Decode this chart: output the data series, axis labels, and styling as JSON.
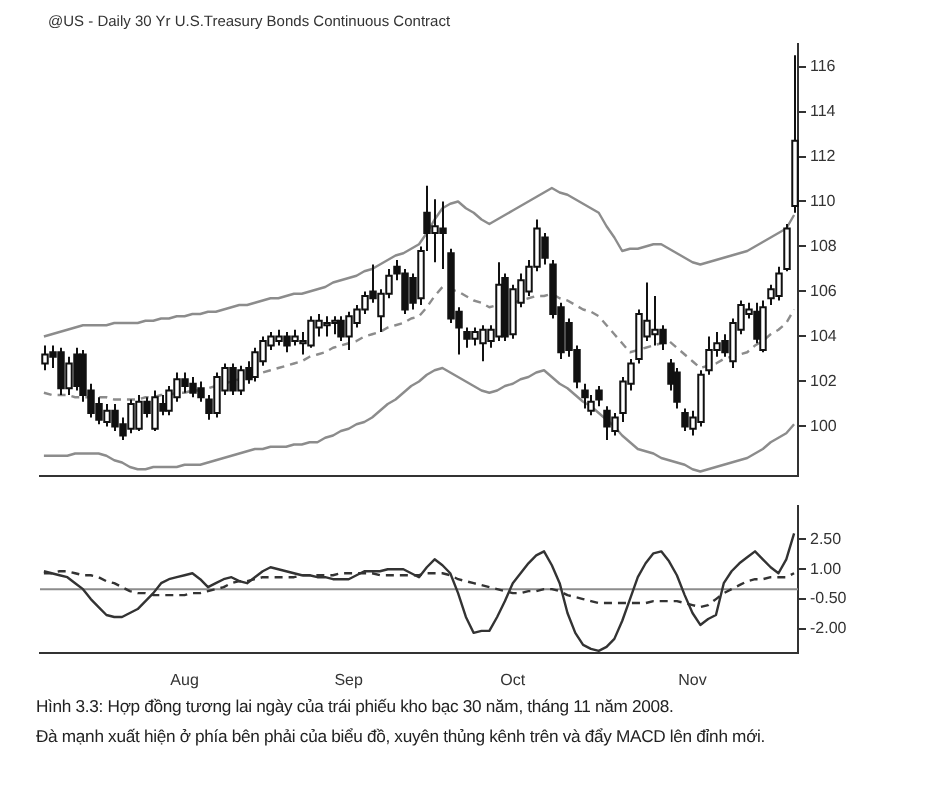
{
  "chart_data": [
    {
      "type": "candlestick",
      "title": "@US - Daily  30 Yr U.S.Treasury Bonds Continuous Contract",
      "tick_labels": "y",
      "categories": [
        null,
        null,
        null,
        null,
        null,
        null,
        null,
        null,
        null,
        null,
        null,
        null,
        null,
        null,
        null,
        null,
        null,
        null,
        null,
        null,
        null,
        null,
        null,
        null,
        null,
        null,
        null,
        null,
        null,
        null,
        null,
        null,
        null,
        null,
        null,
        null,
        null,
        null,
        null,
        null,
        null,
        null,
        null,
        null,
        null,
        null,
        null,
        null,
        null,
        null,
        null,
        null,
        null,
        null,
        null,
        null,
        null,
        null,
        null,
        null,
        null,
        null,
        null,
        null,
        null,
        null,
        null,
        null,
        null,
        null,
        null,
        null,
        null,
        null,
        null,
        null,
        null,
        null,
        null,
        null,
        null,
        null,
        null,
        null,
        null,
        null,
        null,
        null,
        null,
        null,
        null,
        null,
        null,
        null,
        null,
        null,
        null
      ],
      "ohlc": [
        [
          102.8,
          103.6,
          102.5,
          103.2
        ],
        [
          103.3,
          103.6,
          102.6,
          103.1
        ],
        [
          103.3,
          103.5,
          101.4,
          101.7
        ],
        [
          101.7,
          103.1,
          101.4,
          102.8
        ],
        [
          103.2,
          103.5,
          101.6,
          101.8
        ],
        [
          103.2,
          103.4,
          101.1,
          101.4
        ],
        [
          101.6,
          101.9,
          100.4,
          100.6
        ],
        [
          101.0,
          101.3,
          100.1,
          100.3
        ],
        [
          100.2,
          101.0,
          100.0,
          100.7
        ],
        [
          100.7,
          101.0,
          99.8,
          100.0
        ],
        [
          100.1,
          100.4,
          99.4,
          99.6
        ],
        [
          99.9,
          101.2,
          99.7,
          101.0
        ],
        [
          99.9,
          101.4,
          99.8,
          101.1
        ],
        [
          101.1,
          101.3,
          100.4,
          100.6
        ],
        [
          99.9,
          101.6,
          99.8,
          101.3
        ],
        [
          101.0,
          101.4,
          100.5,
          100.7
        ],
        [
          100.7,
          101.8,
          100.5,
          101.6
        ],
        [
          101.3,
          102.4,
          101.1,
          102.1
        ],
        [
          102.1,
          102.4,
          101.5,
          101.8
        ],
        [
          101.9,
          102.2,
          101.3,
          101.5
        ],
        [
          101.7,
          102.0,
          101.1,
          101.3
        ],
        [
          101.2,
          101.4,
          100.3,
          100.6
        ],
        [
          100.6,
          102.4,
          100.4,
          102.2
        ],
        [
          101.6,
          102.8,
          101.4,
          102.6
        ],
        [
          102.6,
          102.8,
          101.4,
          101.6
        ],
        [
          101.6,
          102.7,
          101.4,
          102.5
        ],
        [
          102.6,
          102.9,
          101.9,
          102.1
        ],
        [
          102.2,
          103.5,
          102.0,
          103.3
        ],
        [
          102.9,
          104.0,
          102.7,
          103.8
        ],
        [
          103.6,
          104.2,
          103.4,
          104.0
        ],
        [
          103.8,
          104.3,
          103.6,
          104.0
        ],
        [
          104.0,
          104.2,
          103.3,
          103.6
        ],
        [
          103.8,
          104.3,
          103.6,
          104.0
        ],
        [
          103.7,
          104.2,
          103.2,
          103.8
        ],
        [
          103.6,
          104.9,
          103.5,
          104.7
        ],
        [
          104.4,
          105.0,
          104.0,
          104.7
        ],
        [
          104.5,
          104.9,
          104.0,
          104.6
        ],
        [
          104.6,
          104.9,
          104.1,
          104.7
        ],
        [
          104.7,
          104.9,
          103.8,
          104.0
        ],
        [
          104.0,
          105.1,
          103.4,
          104.9
        ],
        [
          104.6,
          105.4,
          104.4,
          105.2
        ],
        [
          105.2,
          106.0,
          105.0,
          105.8
        ],
        [
          106.0,
          107.2,
          105.5,
          105.7
        ],
        [
          104.9,
          106.1,
          104.2,
          105.9
        ],
        [
          105.9,
          107.0,
          105.7,
          106.7
        ],
        [
          107.1,
          107.4,
          106.5,
          106.8
        ],
        [
          106.8,
          107.0,
          105.0,
          105.2
        ],
        [
          106.6,
          106.8,
          105.2,
          105.5
        ],
        [
          105.7,
          108.0,
          105.4,
          107.8
        ],
        [
          109.5,
          110.7,
          107.8,
          108.6
        ],
        [
          108.6,
          110.1,
          107.3,
          108.9
        ],
        [
          108.8,
          110.0,
          107.0,
          108.6
        ],
        [
          107.7,
          107.9,
          104.6,
          104.8
        ],
        [
          105.1,
          105.3,
          103.2,
          104.4
        ],
        [
          104.2,
          104.4,
          103.5,
          103.9
        ],
        [
          103.9,
          104.4,
          103.6,
          104.2
        ],
        [
          103.7,
          104.5,
          102.9,
          104.3
        ],
        [
          103.8,
          104.5,
          103.5,
          104.3
        ],
        [
          104.0,
          107.3,
          103.8,
          106.3
        ],
        [
          106.6,
          106.8,
          103.8,
          104.0
        ],
        [
          104.1,
          106.3,
          103.9,
          106.1
        ],
        [
          105.5,
          106.8,
          105.3,
          106.5
        ],
        [
          106.0,
          107.4,
          105.8,
          107.1
        ],
        [
          107.1,
          109.2,
          106.9,
          108.8
        ],
        [
          108.4,
          108.6,
          107.2,
          107.5
        ],
        [
          107.2,
          107.4,
          104.8,
          105.0
        ],
        [
          105.3,
          105.5,
          103.0,
          103.3
        ],
        [
          104.6,
          104.8,
          103.1,
          103.4
        ],
        [
          103.4,
          103.6,
          101.7,
          102.0
        ],
        [
          101.6,
          101.9,
          100.8,
          101.3
        ],
        [
          100.7,
          101.4,
          100.5,
          101.1
        ],
        [
          101.6,
          101.8,
          100.9,
          101.2
        ],
        [
          100.7,
          100.9,
          99.4,
          100.0
        ],
        [
          99.8,
          100.6,
          99.6,
          100.4
        ],
        [
          100.6,
          102.2,
          100.2,
          102.0
        ],
        [
          101.9,
          103.0,
          101.6,
          102.8
        ],
        [
          103.0,
          105.2,
          102.8,
          105.0
        ],
        [
          104.0,
          106.4,
          103.8,
          104.7
        ],
        [
          104.1,
          105.8,
          103.6,
          104.3
        ],
        [
          104.3,
          104.5,
          103.4,
          103.7
        ],
        [
          102.8,
          103.0,
          101.6,
          101.9
        ],
        [
          102.4,
          102.6,
          100.8,
          101.1
        ],
        [
          100.6,
          100.8,
          99.8,
          100.0
        ],
        [
          99.9,
          100.7,
          99.6,
          100.4
        ],
        [
          100.2,
          102.5,
          100.0,
          102.3
        ],
        [
          102.5,
          104.0,
          102.3,
          103.4
        ],
        [
          103.4,
          104.2,
          103.1,
          103.7
        ],
        [
          103.8,
          104.1,
          103.1,
          103.3
        ],
        [
          102.9,
          104.8,
          102.6,
          104.6
        ],
        [
          104.3,
          105.6,
          104.1,
          105.4
        ],
        [
          105.0,
          105.5,
          104.8,
          105.2
        ],
        [
          105.1,
          105.5,
          103.7,
          103.9
        ],
        [
          103.4,
          105.6,
          103.3,
          105.3
        ],
        [
          105.7,
          106.3,
          105.4,
          106.1
        ],
        [
          105.8,
          107.1,
          105.6,
          106.8
        ],
        [
          107.0,
          109.0,
          106.9,
          108.8
        ],
        [
          109.8,
          116.5,
          109.5,
          112.7
        ]
      ],
      "series": [
        {
          "type": "line",
          "color": "#8c8c8c",
          "line_style": "solid",
          "values": [
            104.0,
            104.1,
            104.2,
            104.3,
            104.4,
            104.5,
            104.5,
            104.5,
            104.5,
            104.6,
            104.6,
            104.6,
            104.6,
            104.7,
            104.7,
            104.8,
            104.8,
            104.9,
            104.9,
            105.0,
            105.0,
            105.1,
            105.1,
            105.2,
            105.3,
            105.4,
            105.4,
            105.5,
            105.6,
            105.7,
            105.7,
            105.8,
            105.9,
            105.9,
            106.0,
            106.1,
            106.2,
            106.4,
            106.5,
            106.6,
            106.7,
            106.9,
            107.0,
            107.2,
            107.4,
            107.6,
            107.7,
            107.9,
            108.1,
            108.6,
            109.2,
            109.7,
            109.9,
            110.0,
            109.7,
            109.5,
            109.2,
            109.0,
            109.2,
            109.4,
            109.6,
            109.8,
            110.0,
            110.2,
            110.4,
            110.6,
            110.4,
            110.3,
            110.1,
            109.9,
            109.7,
            109.5,
            108.9,
            108.4,
            107.8,
            107.9,
            107.9,
            108.0,
            108.1,
            108.1,
            107.9,
            107.7,
            107.5,
            107.3,
            107.2,
            107.3,
            107.4,
            107.5,
            107.6,
            107.7,
            107.8,
            108.0,
            108.2,
            108.4,
            108.6,
            108.8,
            109.4
          ]
        },
        {
          "type": "line",
          "color": "#8c8c8c",
          "line_style": "dashed",
          "values": [
            101.5,
            101.4,
            101.4,
            101.4,
            101.3,
            101.3,
            101.3,
            101.3,
            101.3,
            101.2,
            101.2,
            101.2,
            101.2,
            101.3,
            101.3,
            101.4,
            101.4,
            101.5,
            101.5,
            101.6,
            101.6,
            101.7,
            101.8,
            101.9,
            102.0,
            102.1,
            102.2,
            102.3,
            102.4,
            102.5,
            102.6,
            102.7,
            102.8,
            102.9,
            103.1,
            103.2,
            103.3,
            103.5,
            103.6,
            103.7,
            103.8,
            104.0,
            104.1,
            104.2,
            104.4,
            104.5,
            104.6,
            104.8,
            104.9,
            105.3,
            105.8,
            106.2,
            106.1,
            106.0,
            105.8,
            105.6,
            105.5,
            105.3,
            105.4,
            105.4,
            105.5,
            105.6,
            105.7,
            105.8,
            105.8,
            105.9,
            105.7,
            105.6,
            105.4,
            105.2,
            105.1,
            104.9,
            104.5,
            104.1,
            103.7,
            103.3,
            103.4,
            103.5,
            103.6,
            103.7,
            103.8,
            103.5,
            103.2,
            102.9,
            102.6,
            102.7,
            102.8,
            103.0,
            103.1,
            103.2,
            103.3,
            103.6,
            103.8,
            104.1,
            104.3,
            104.6,
            105.2
          ]
        },
        {
          "type": "line",
          "color": "#8c8c8c",
          "line_style": "solid",
          "values": [
            98.7,
            98.7,
            98.7,
            98.7,
            98.8,
            98.8,
            98.8,
            98.8,
            98.7,
            98.5,
            98.4,
            98.2,
            98.1,
            98.1,
            98.2,
            98.2,
            98.2,
            98.2,
            98.3,
            98.3,
            98.3,
            98.4,
            98.5,
            98.6,
            98.7,
            98.8,
            98.9,
            99.0,
            99.0,
            99.1,
            99.1,
            99.1,
            99.2,
            99.2,
            99.3,
            99.3,
            99.5,
            99.6,
            99.8,
            99.9,
            100.1,
            100.2,
            100.4,
            100.7,
            101.0,
            101.2,
            101.5,
            101.8,
            102.0,
            102.3,
            102.5,
            102.6,
            102.4,
            102.2,
            102.0,
            101.8,
            101.6,
            101.5,
            101.6,
            101.8,
            101.9,
            102.1,
            102.2,
            102.4,
            102.5,
            102.2,
            101.9,
            101.7,
            101.4,
            101.1,
            100.9,
            100.6,
            100.3,
            100.0,
            99.6,
            99.3,
            99.0,
            98.9,
            98.8,
            98.6,
            98.5,
            98.4,
            98.3,
            98.1,
            98.0,
            98.1,
            98.2,
            98.3,
            98.4,
            98.5,
            98.6,
            98.8,
            99.0,
            99.3,
            99.5,
            99.7,
            100.1
          ]
        }
      ],
      "ylim": [
        97.8,
        117
      ],
      "yticks": [
        100,
        102,
        104,
        106,
        108,
        110,
        112,
        114,
        116
      ]
    },
    {
      "type": "line",
      "categories": [
        null,
        null,
        null,
        null,
        null,
        null,
        null,
        null,
        null,
        null,
        null,
        null,
        null,
        null,
        null,
        null,
        null,
        null,
        "Aug",
        null,
        null,
        null,
        null,
        null,
        null,
        null,
        null,
        null,
        null,
        null,
        null,
        null,
        null,
        null,
        null,
        null,
        null,
        null,
        null,
        "Sep",
        null,
        null,
        null,
        null,
        null,
        null,
        null,
        null,
        null,
        null,
        null,
        null,
        null,
        null,
        null,
        null,
        null,
        null,
        null,
        null,
        "Oct",
        null,
        null,
        null,
        null,
        null,
        null,
        null,
        null,
        null,
        null,
        null,
        null,
        null,
        null,
        null,
        null,
        null,
        null,
        null,
        null,
        null,
        null,
        "Nov",
        null,
        null,
        null,
        null,
        null,
        null,
        null,
        null,
        null,
        null,
        null,
        null,
        null
      ],
      "series": [
        {
          "color": "#333333",
          "line_style": "solid",
          "values": [
            0.9,
            0.8,
            0.7,
            0.6,
            0.3,
            0.0,
            -0.5,
            -0.9,
            -1.3,
            -1.4,
            -1.4,
            -1.2,
            -1.0,
            -0.6,
            -0.2,
            0.3,
            0.5,
            0.6,
            0.7,
            0.8,
            0.5,
            0.1,
            0.3,
            0.5,
            0.6,
            0.4,
            0.3,
            0.6,
            0.9,
            1.1,
            1.0,
            0.9,
            0.8,
            0.7,
            0.7,
            0.6,
            0.6,
            0.5,
            0.5,
            0.5,
            0.7,
            0.9,
            0.9,
            0.9,
            1.0,
            1.0,
            1.0,
            0.8,
            0.6,
            1.1,
            1.5,
            1.2,
            0.8,
            -0.2,
            -1.4,
            -2.2,
            -2.1,
            -2.1,
            -1.4,
            -0.6,
            0.3,
            0.8,
            1.3,
            1.7,
            1.9,
            1.2,
            0.3,
            -1.2,
            -2.2,
            -2.8,
            -3.0,
            -3.1,
            -2.9,
            -2.5,
            -1.6,
            -0.5,
            0.6,
            1.3,
            1.8,
            1.9,
            1.4,
            0.7,
            -0.3,
            -1.2,
            -1.8,
            -1.5,
            -1.3,
            0.3,
            0.9,
            1.3,
            1.6,
            1.9,
            1.5,
            1.1,
            0.8,
            1.5,
            2.8
          ]
        },
        {
          "color": "#333333",
          "line_style": "dashed",
          "values": [
            0.8,
            0.8,
            0.9,
            0.9,
            0.8,
            0.7,
            0.7,
            0.6,
            0.4,
            0.3,
            0.1,
            -0.1,
            -0.2,
            -0.2,
            -0.3,
            -0.3,
            -0.3,
            -0.3,
            -0.3,
            -0.2,
            -0.2,
            -0.1,
            0.0,
            0.1,
            0.3,
            0.4,
            0.4,
            0.5,
            0.6,
            0.6,
            0.6,
            0.6,
            0.6,
            0.7,
            0.7,
            0.7,
            0.7,
            0.7,
            0.8,
            0.8,
            0.8,
            0.8,
            0.8,
            0.7,
            0.7,
            0.7,
            0.7,
            0.7,
            0.7,
            0.8,
            0.8,
            0.8,
            0.7,
            0.5,
            0.4,
            0.3,
            0.2,
            0.1,
            0.0,
            -0.1,
            -0.2,
            -0.2,
            -0.1,
            -0.1,
            0.0,
            0.0,
            -0.1,
            -0.3,
            -0.4,
            -0.5,
            -0.6,
            -0.7,
            -0.7,
            -0.7,
            -0.7,
            -0.7,
            -0.7,
            -0.7,
            -0.6,
            -0.6,
            -0.6,
            -0.6,
            -0.7,
            -0.8,
            -0.9,
            -0.8,
            -0.5,
            -0.2,
            0.0,
            0.2,
            0.4,
            0.5,
            0.5,
            0.6,
            0.6,
            0.6,
            0.8
          ]
        }
      ],
      "ylim": [
        -3.2,
        4.2
      ],
      "yticks": [
        {
          "value": 2.5,
          "label": "2.50"
        },
        {
          "value": 1,
          "label": "1.00"
        },
        {
          "value": -0.5,
          "label": "-0.50"
        },
        {
          "value": -2,
          "label": "-2.00"
        }
      ],
      "ref_lines": [
        {
          "axis": "y",
          "value": 0,
          "color": "#8c8c8c"
        }
      ],
      "annotations": [
        "Hình 3.3: Hợp đồng tương lai ngày của trái phiếu kho bạc 30 năm, tháng 11 năm 2008.",
        "Đà mạnh xuất hiện ở phía bên phải của biểu đồ, xuyên thủng kênh trên và đẩy MACD lên đỉnh mới."
      ]
    }
  ]
}
